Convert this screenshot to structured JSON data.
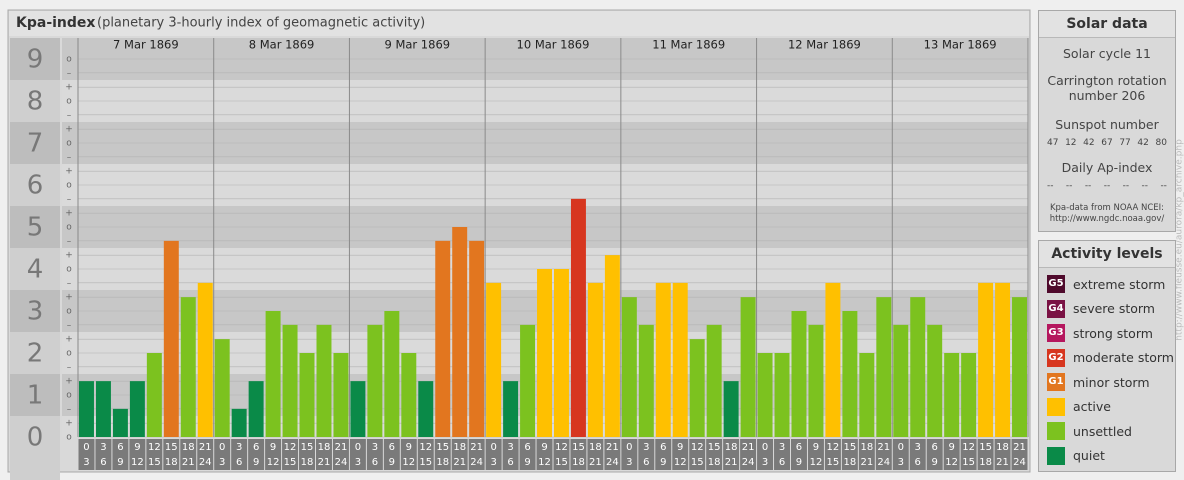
{
  "chart_data": {
    "type": "bar",
    "title": "Kpa-index",
    "subtitle": "(planetary 3-hourly index of geomagnetic activity)",
    "categories": [
      [
        "0",
        "3"
      ],
      [
        "3",
        "6"
      ],
      [
        "6",
        "9"
      ],
      [
        "9",
        "12"
      ],
      [
        "12",
        "15"
      ],
      [
        "15",
        "18"
      ],
      [
        "18",
        "21"
      ],
      [
        "21",
        "24"
      ]
    ],
    "series": [
      {
        "name": "7 Mar 1869",
        "values": [
          1.33,
          1.33,
          0.67,
          1.33,
          2,
          4.67,
          3.33,
          3.67
        ],
        "colors": [
          "#0a8a48",
          "#0a8a48",
          "#0a8a48",
          "#0a8a48",
          "#7cc21f",
          "#e2761f",
          "#7cc21f",
          "#ffc000"
        ]
      },
      {
        "name": "8 Mar 1869",
        "values": [
          2.33,
          0.67,
          1.33,
          3,
          2.67,
          2,
          2.67,
          2
        ],
        "colors": [
          "#7cc21f",
          "#0a8a48",
          "#0a8a48",
          "#7cc21f",
          "#7cc21f",
          "#7cc21f",
          "#7cc21f",
          "#7cc21f"
        ]
      },
      {
        "name": "9 Mar 1869",
        "values": [
          1.33,
          2.67,
          3,
          2,
          1.33,
          4.67,
          5,
          4.67
        ],
        "colors": [
          "#0a8a48",
          "#7cc21f",
          "#7cc21f",
          "#7cc21f",
          "#0a8a48",
          "#e2761f",
          "#e2761f",
          "#e2761f"
        ]
      },
      {
        "name": "10 Mar 1869",
        "values": [
          3.67,
          1.33,
          2.67,
          4,
          4,
          5.67,
          3.67,
          4.33
        ],
        "colors": [
          "#ffc000",
          "#0a8a48",
          "#7cc21f",
          "#ffc000",
          "#ffc000",
          "#d7361f",
          "#ffc000",
          "#ffc000"
        ]
      },
      {
        "name": "11 Mar 1869",
        "values": [
          3.33,
          2.67,
          3.67,
          3.67,
          2.33,
          2.67,
          1.33,
          3.33
        ],
        "colors": [
          "#7cc21f",
          "#7cc21f",
          "#ffc000",
          "#ffc000",
          "#7cc21f",
          "#7cc21f",
          "#0a8a48",
          "#7cc21f"
        ]
      },
      {
        "name": "12 Mar 1869",
        "values": [
          2,
          2,
          3,
          2.67,
          3.67,
          3,
          2,
          3.33
        ],
        "colors": [
          "#7cc21f",
          "#7cc21f",
          "#7cc21f",
          "#7cc21f",
          "#ffc000",
          "#7cc21f",
          "#7cc21f",
          "#7cc21f"
        ]
      },
      {
        "name": "13 Mar 1869",
        "values": [
          2.67,
          3.33,
          2.67,
          2,
          2,
          3.67,
          3.67,
          3.33
        ],
        "colors": [
          "#7cc21f",
          "#7cc21f",
          "#7cc21f",
          "#7cc21f",
          "#7cc21f",
          "#ffc000",
          "#ffc000",
          "#7cc21f"
        ]
      }
    ],
    "ylim": [
      0,
      9.5
    ],
    "yticks": [
      0,
      1,
      2,
      3,
      4,
      5,
      6,
      7,
      8,
      9
    ],
    "yminorticks": [
      {
        "value": 0,
        "label": "o"
      },
      {
        "value": 0.33,
        "label": "+"
      },
      {
        "value": 0.67,
        "label": "–"
      },
      {
        "value": 1,
        "label": "o"
      },
      {
        "value": 1.33,
        "label": "+"
      },
      {
        "value": 1.67,
        "label": "–"
      },
      {
        "value": 2,
        "label": "o"
      },
      {
        "value": 2.33,
        "label": "+"
      },
      {
        "value": 2.67,
        "label": "–"
      },
      {
        "value": 3,
        "label": "o"
      },
      {
        "value": 3.33,
        "label": "+"
      },
      {
        "value": 3.67,
        "label": "–"
      },
      {
        "value": 4,
        "label": "o"
      },
      {
        "value": 4.33,
        "label": "+"
      },
      {
        "value": 4.67,
        "label": "–"
      },
      {
        "value": 5,
        "label": "o"
      },
      {
        "value": 5.33,
        "label": "+"
      },
      {
        "value": 5.67,
        "label": "–"
      },
      {
        "value": 6,
        "label": "o"
      },
      {
        "value": 6.33,
        "label": "+"
      },
      {
        "value": 6.67,
        "label": "–"
      },
      {
        "value": 7,
        "label": "o"
      },
      {
        "value": 7.33,
        "label": "+"
      },
      {
        "value": 7.67,
        "label": "–"
      },
      {
        "value": 8,
        "label": "o"
      },
      {
        "value": 8.33,
        "label": "+"
      },
      {
        "value": 8.67,
        "label": "–"
      },
      {
        "value": 9,
        "label": "o"
      }
    ],
    "grid": true
  },
  "solar_data": {
    "title": "Solar data",
    "cycle": "Solar cycle 11",
    "carrington": "Carrington rotation number 206",
    "sunspot_title": "Sunspot number",
    "sunspot": [
      "47",
      "12",
      "42",
      "67",
      "77",
      "42",
      "80"
    ],
    "ap_title": "Daily Ap-index",
    "ap": [
      "--",
      "--",
      "--",
      "--",
      "--",
      "--",
      "--"
    ],
    "note": [
      "Kpa-data from NOAA NCEI:",
      "http://www.ngdc.noaa.gov/"
    ]
  },
  "activity_levels": {
    "title": "Activity levels",
    "levels": [
      {
        "code": "G5",
        "label": "extreme storm",
        "color": "#4f0a2c"
      },
      {
        "code": "G4",
        "label": "severe storm",
        "color": "#7a1244"
      },
      {
        "code": "G3",
        "label": "strong storm",
        "color": "#b5175e"
      },
      {
        "code": "G2",
        "label": "moderate storm",
        "color": "#d7361f"
      },
      {
        "code": "G1",
        "label": "minor storm",
        "color": "#e2761f"
      },
      {
        "code": null,
        "label": "active",
        "color": "#ffc000"
      },
      {
        "code": null,
        "label": "unsettled",
        "color": "#7cc21f"
      },
      {
        "code": null,
        "label": "quiet",
        "color": "#0a8a48"
      }
    ]
  },
  "watermark": "http://www.fleusse.eu/aurora/kp_archive.php"
}
